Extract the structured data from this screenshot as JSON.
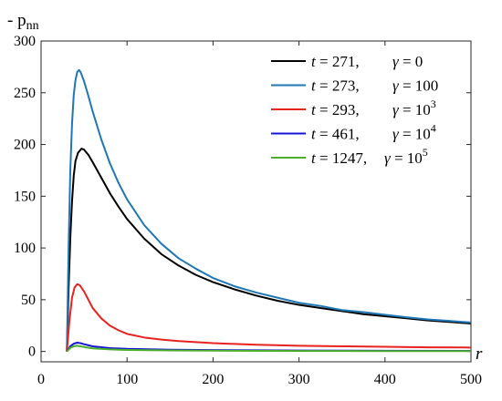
{
  "chart_data": {
    "type": "line",
    "ylabel": "- p",
    "ylabel_sub": "nn",
    "xlabel": "r",
    "xlim": [
      0,
      500
    ],
    "ylim": [
      -10,
      300
    ],
    "xticks": [
      0,
      100,
      200,
      300,
      400,
      500
    ],
    "yticks": [
      0,
      50,
      100,
      150,
      200,
      250,
      300
    ],
    "grid": false,
    "legend_position": "top-right",
    "series": [
      {
        "t": "271",
        "gamma_base": "0",
        "gamma_exp": "",
        "color": "#000000",
        "points": [
          [
            30,
            0
          ],
          [
            32,
            60
          ],
          [
            34,
            110
          ],
          [
            36,
            145
          ],
          [
            38,
            170
          ],
          [
            40,
            184
          ],
          [
            43,
            192
          ],
          [
            47,
            196
          ],
          [
            50,
            195
          ],
          [
            55,
            190
          ],
          [
            60,
            183
          ],
          [
            70,
            168
          ],
          [
            80,
            153
          ],
          [
            90,
            140
          ],
          [
            100,
            128
          ],
          [
            120,
            109
          ],
          [
            140,
            94
          ],
          [
            160,
            83
          ],
          [
            180,
            74
          ],
          [
            200,
            67
          ],
          [
            225,
            60
          ],
          [
            250,
            54
          ],
          [
            275,
            49
          ],
          [
            300,
            45
          ],
          [
            325,
            42
          ],
          [
            350,
            39
          ],
          [
            375,
            36
          ],
          [
            400,
            34
          ],
          [
            425,
            32
          ],
          [
            450,
            30
          ],
          [
            475,
            28.5
          ],
          [
            500,
            27
          ]
        ]
      },
      {
        "t": "273",
        "gamma_base": "100",
        "gamma_exp": "",
        "color": "#1f77b4",
        "points": [
          [
            30,
            0
          ],
          [
            32,
            100
          ],
          [
            34,
            175
          ],
          [
            36,
            220
          ],
          [
            38,
            248
          ],
          [
            40,
            262
          ],
          [
            42,
            270
          ],
          [
            44,
            272
          ],
          [
            46,
            270
          ],
          [
            50,
            261
          ],
          [
            55,
            247
          ],
          [
            60,
            232
          ],
          [
            70,
            205
          ],
          [
            80,
            182
          ],
          [
            90,
            163
          ],
          [
            100,
            147
          ],
          [
            120,
            122
          ],
          [
            140,
            104
          ],
          [
            160,
            90
          ],
          [
            180,
            80
          ],
          [
            200,
            71
          ],
          [
            225,
            63
          ],
          [
            250,
            57
          ],
          [
            275,
            52
          ],
          [
            300,
            47
          ],
          [
            325,
            44
          ],
          [
            350,
            40
          ],
          [
            375,
            38
          ],
          [
            400,
            35.5
          ],
          [
            425,
            33
          ],
          [
            450,
            31
          ],
          [
            475,
            29.5
          ],
          [
            500,
            28
          ]
        ]
      },
      {
        "t": "293",
        "gamma_base": "10",
        "gamma_exp": "3",
        "color": "#e8231f",
        "points": [
          [
            30,
            0
          ],
          [
            33,
            30
          ],
          [
            36,
            52
          ],
          [
            39,
            62
          ],
          [
            42,
            65
          ],
          [
            45,
            64
          ],
          [
            50,
            58
          ],
          [
            55,
            50
          ],
          [
            60,
            42
          ],
          [
            70,
            32
          ],
          [
            80,
            25
          ],
          [
            90,
            20.5
          ],
          [
            100,
            17
          ],
          [
            120,
            13.5
          ],
          [
            140,
            11.5
          ],
          [
            160,
            10
          ],
          [
            180,
            9
          ],
          [
            200,
            8
          ],
          [
            250,
            6.5
          ],
          [
            300,
            5.5
          ],
          [
            350,
            5
          ],
          [
            400,
            4.5
          ],
          [
            450,
            4
          ],
          [
            500,
            3.8
          ]
        ]
      },
      {
        "t": "461",
        "gamma_base": "10",
        "gamma_exp": "4",
        "color": "#1515d4",
        "points": [
          [
            30,
            0
          ],
          [
            34,
            5
          ],
          [
            38,
            7.5
          ],
          [
            42,
            8.5
          ],
          [
            46,
            8
          ],
          [
            50,
            7
          ],
          [
            60,
            5
          ],
          [
            80,
            3.2
          ],
          [
            100,
            2.5
          ],
          [
            150,
            1.7
          ],
          [
            200,
            1.3
          ],
          [
            300,
            0.9
          ],
          [
            400,
            0.7
          ],
          [
            500,
            0.6
          ]
        ]
      },
      {
        "t": "1247",
        "gamma_base": "10",
        "gamma_exp": "5",
        "color": "#4caf2a",
        "points": [
          [
            30,
            0
          ],
          [
            34,
            3.5
          ],
          [
            38,
            5
          ],
          [
            42,
            5.5
          ],
          [
            46,
            5
          ],
          [
            52,
            4
          ],
          [
            60,
            3
          ],
          [
            80,
            2
          ],
          [
            100,
            1.5
          ],
          [
            150,
            1
          ],
          [
            200,
            0.8
          ],
          [
            300,
            0.5
          ],
          [
            400,
            0.4
          ],
          [
            500,
            0.3
          ]
        ]
      }
    ]
  }
}
